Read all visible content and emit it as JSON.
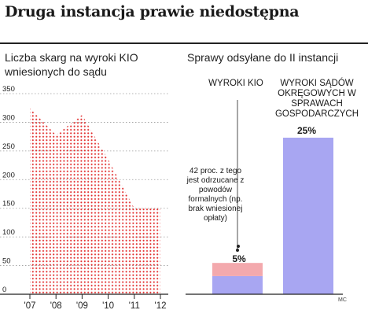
{
  "title": "Druga instancja prawie niedostępna",
  "credit": "MC",
  "colors": {
    "dots": "#e12b2b",
    "kio_bottom": "#a8a6f2",
    "kio_top": "#f3a9ad",
    "courts_bar": "#a8a6f2"
  },
  "chart_data": [
    {
      "type": "area",
      "subtitle": "Liczba skarg na wyroki KIO wniesionych do sądu",
      "categories": [
        "'07",
        "'08",
        "'09",
        "'10",
        "'11",
        "'12"
      ],
      "x": [
        2007,
        2008,
        2009,
        2010,
        2011,
        2012
      ],
      "values": [
        325,
        278,
        313,
        235,
        150,
        150
      ],
      "ylim": [
        0,
        350
      ],
      "yticks": [
        "0",
        "50",
        "100",
        "150",
        "200",
        "250",
        "300",
        "350"
      ],
      "grid": true
    },
    {
      "type": "bar",
      "subtitle": "Sprawy odsyłane do II instancji",
      "categories": [
        "WYROKI KIO",
        "WYROKI SĄDÓW OKRĘGOWYCH W SPRAWACH GOSPODARCZYCH"
      ],
      "values": [
        5,
        25
      ],
      "value_labels": [
        "5%",
        "25%"
      ],
      "ylim": [
        0,
        25
      ],
      "annotation": {
        "text": "42 proc. z tego jest odrzucane z powodów formalnych (np. brak wniesionej opłaty)",
        "share_of_kio_bar": 0.42
      }
    }
  ]
}
